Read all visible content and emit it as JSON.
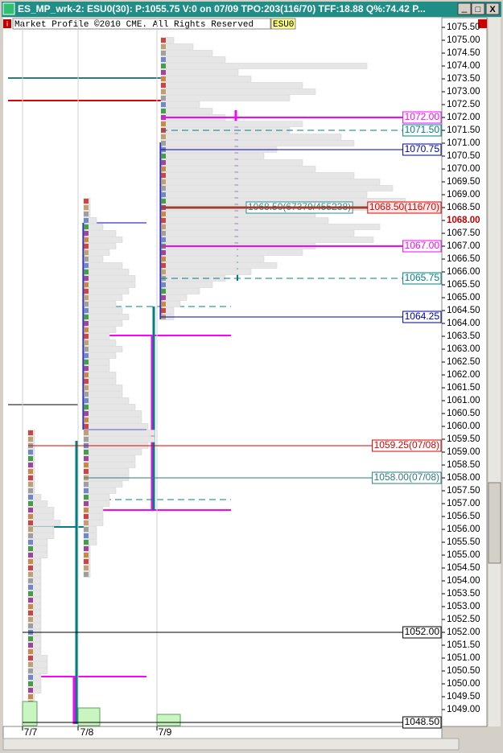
{
  "window": {
    "title": "ES_MP_wrk-2: ESU0(30): P:1055.75 V:0 on 07/09 TPO:203(116/70)  TFF:18.88 Q%:74.42 P...",
    "buttons": [
      "_",
      "□",
      "X"
    ]
  },
  "chart_data": {
    "type": "market-profile",
    "copyright": "Market Profile ©2010 CME. All Rights Reserved",
    "symbol": "ESU0",
    "ylim": [
      1048.375,
      1075.875
    ],
    "row_step": 0.25,
    "current_price": 1068,
    "yticks": [
      {
        "value": 1075.5,
        "label": "1075.50"
      },
      {
        "value": 1075,
        "label": "1075.00"
      },
      {
        "value": 1074.5,
        "label": "1074.50"
      },
      {
        "value": 1074,
        "label": "1074.00"
      },
      {
        "value": 1073.5,
        "label": "1073.50"
      },
      {
        "value": 1073,
        "label": "1073.00"
      },
      {
        "value": 1072.5,
        "label": "1072.50"
      },
      {
        "value": 1072,
        "label": "1072.00"
      },
      {
        "value": 1071.5,
        "label": "1071.50"
      },
      {
        "value": 1071,
        "label": "1071.00"
      },
      {
        "value": 1070.5,
        "label": "1070.50"
      },
      {
        "value": 1070,
        "label": "1070.00"
      },
      {
        "value": 1069.5,
        "label": "1069.50"
      },
      {
        "value": 1069,
        "label": "1069.00"
      },
      {
        "value": 1068.5,
        "label": "1068.50"
      },
      {
        "value": 1068,
        "label": "1068.00"
      },
      {
        "value": 1067.5,
        "label": "1067.50"
      },
      {
        "value": 1067,
        "label": "1067.00"
      },
      {
        "value": 1066.5,
        "label": "1066.50"
      },
      {
        "value": 1066,
        "label": "1066.00"
      },
      {
        "value": 1065.5,
        "label": "1065.50"
      },
      {
        "value": 1065,
        "label": "1065.00"
      },
      {
        "value": 1064.5,
        "label": "1064.50"
      },
      {
        "value": 1064,
        "label": "1064.00"
      },
      {
        "value": 1063.5,
        "label": "1063.50"
      },
      {
        "value": 1063,
        "label": "1063.00"
      },
      {
        "value": 1062.5,
        "label": "1062.50"
      },
      {
        "value": 1062,
        "label": "1062.00"
      },
      {
        "value": 1061.5,
        "label": "1061.50"
      },
      {
        "value": 1061,
        "label": "1061.00"
      },
      {
        "value": 1060.5,
        "label": "1060.50"
      },
      {
        "value": 1060,
        "label": "1060.00"
      },
      {
        "value": 1059.5,
        "label": "1059.50"
      },
      {
        "value": 1059,
        "label": "1059.00"
      },
      {
        "value": 1058.5,
        "label": "1058.50"
      },
      {
        "value": 1058,
        "label": "1058.00"
      },
      {
        "value": 1057.5,
        "label": "1057.50"
      },
      {
        "value": 1057,
        "label": "1057.00"
      },
      {
        "value": 1056.5,
        "label": "1056.50"
      },
      {
        "value": 1056,
        "label": "1056.00"
      },
      {
        "value": 1055.5,
        "label": "1055.50"
      },
      {
        "value": 1055,
        "label": "1055.00"
      },
      {
        "value": 1054.5,
        "label": "1054.50"
      },
      {
        "value": 1054,
        "label": "1054.00"
      },
      {
        "value": 1053.5,
        "label": "1053.50"
      },
      {
        "value": 1053,
        "label": "1053.00"
      },
      {
        "value": 1052.5,
        "label": "1052.50"
      },
      {
        "value": 1052,
        "label": "1052.00"
      },
      {
        "value": 1051.5,
        "label": "1051.50"
      },
      {
        "value": 1051,
        "label": "1051.00"
      },
      {
        "value": 1050.5,
        "label": "1050.50"
      },
      {
        "value": 1050,
        "label": "1050.00"
      },
      {
        "value": 1049.5,
        "label": "1049.50"
      },
      {
        "value": 1049,
        "label": "1049.00"
      }
    ],
    "days": [
      {
        "date": "7/7",
        "high": 1059.75,
        "volume": 30,
        "row_widths": [
          1,
          1,
          1,
          1,
          1,
          1,
          1,
          1,
          1,
          1,
          2,
          3,
          4,
          4,
          5,
          4,
          4,
          3,
          3,
          3,
          2,
          2,
          2,
          2,
          2,
          2,
          2,
          2,
          2,
          2,
          2,
          2,
          2,
          2,
          2,
          3,
          3,
          3,
          2,
          2,
          2,
          1,
          1,
          1,
          1
        ]
      },
      {
        "date": "7/8",
        "high": 1068.75,
        "volume": 22,
        "row_widths": [
          1,
          1,
          1,
          2,
          3,
          5,
          6,
          5,
          4,
          3,
          6,
          7,
          8,
          8,
          7,
          6,
          5,
          6,
          7,
          6,
          5,
          4,
          5,
          6,
          5,
          4,
          4,
          5,
          5,
          6,
          6,
          7,
          8,
          9,
          9,
          10,
          11,
          11,
          10,
          9,
          8,
          8,
          7,
          7,
          6,
          5,
          4,
          4,
          3,
          3,
          3,
          2,
          2,
          2,
          1,
          1,
          1,
          1,
          1
        ]
      },
      {
        "date": "7/9",
        "high": 1075.0,
        "volume": 14,
        "row_widths": [
          2,
          5,
          8,
          10,
          32,
          12,
          14,
          22,
          24,
          20,
          6,
          8,
          10,
          22,
          20,
          28,
          30,
          18,
          16,
          22,
          24,
          30,
          34,
          36,
          32,
          38,
          32,
          24,
          26,
          34,
          30,
          33,
          24,
          22,
          16,
          18,
          14,
          10,
          8,
          6,
          4,
          3,
          2,
          2
        ]
      }
    ],
    "levels": [
      {
        "label": "1072.00",
        "price": 1072,
        "color": "#ff00ff",
        "style": "solid"
      },
      {
        "label": "1071.50",
        "price": 1071.5,
        "color": "#008080",
        "style": "dashed"
      },
      {
        "label": "1070.75",
        "price": 1070.75,
        "color": "#0000a0",
        "style": "solid"
      },
      {
        "label": "1068.50(67379/455238)",
        "price": 1068.5,
        "color": "#2e8b8b",
        "style": "solid"
      },
      {
        "label": "1068.50(116/70)",
        "price": 1068.5,
        "color": "#e00000",
        "style": "thick"
      },
      {
        "label": "1067.00",
        "price": 1067,
        "color": "#ff00ff",
        "style": "solid"
      },
      {
        "label": "1065.75",
        "price": 1065.75,
        "color": "#008080",
        "style": "dashed"
      },
      {
        "label": "1064.25",
        "price": 1064.25,
        "color": "#0000a0",
        "style": "solid"
      },
      {
        "label": "1059.25(07/08)",
        "price": 1059.25,
        "color": "#e00000",
        "style": "solid"
      },
      {
        "label": "1058.00(07/08)",
        "price": 1058,
        "color": "#2e7b7b",
        "style": "solid"
      },
      {
        "label": "1052.00",
        "price": 1052,
        "color": "#000000",
        "style": "solid"
      },
      {
        "label": "1048.50",
        "price": 1048.5,
        "color": "#000000",
        "style": "solid"
      }
    ]
  }
}
